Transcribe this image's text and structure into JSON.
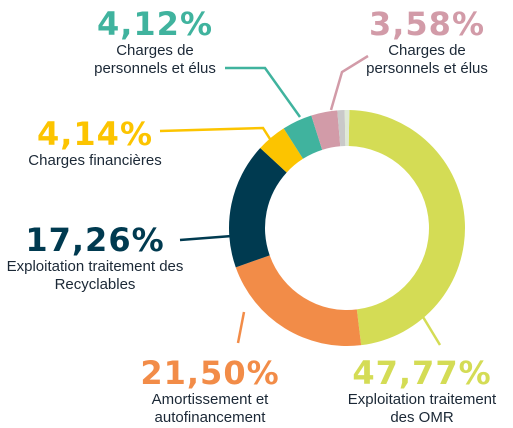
{
  "chart_data": {
    "type": "pie",
    "donut": true,
    "categories": [
      "Exploitation traitement des OMR",
      "Amortissement et autofinancement",
      "Exploitation traitement des Recyclables",
      "Charges financières",
      "Charges de personnels et élus",
      "Charges de personnels et élus",
      null,
      null
    ],
    "values": [
      47.77,
      21.5,
      17.26,
      4.14,
      4.12,
      3.58,
      1.0,
      0.63
    ],
    "value_labels": [
      "47,77%",
      "21,50%",
      "17,26%",
      "4,14%",
      "4,12%",
      "3,58%",
      null,
      null
    ],
    "colors": [
      "#d4dc55",
      "#f28c48",
      "#003a50",
      "#fcc400",
      "#40b39e",
      "#d29ba8",
      "#c9c9c9",
      "#dfe9d6"
    ]
  }
}
